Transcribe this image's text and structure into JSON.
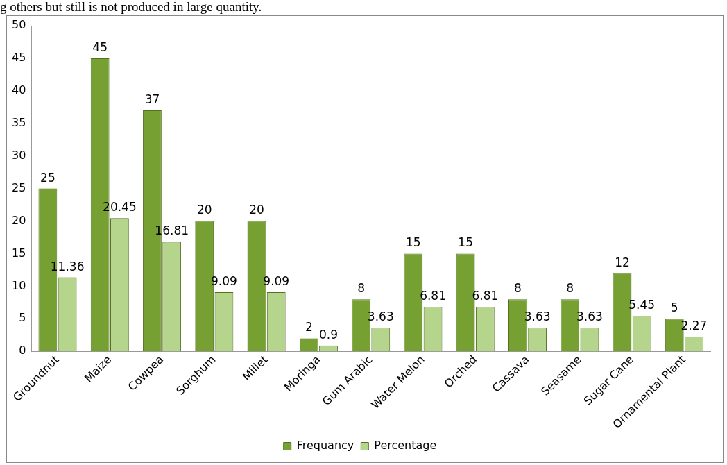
{
  "chart_data": {
    "type": "bar",
    "annotations": [
      "g others but still is not produced in large quantity."
    ],
    "categories": [
      "Groundnut",
      "Maize",
      "Cowpea",
      "Sorghum",
      "Millet",
      "Moringa",
      "Gum Arabic",
      "Water Melon",
      "Orched",
      "Cassava",
      "Seasame",
      "Sugar Cane",
      "Ornamental Plant"
    ],
    "series": [
      {
        "name": "Frequancy",
        "color": "#77a033",
        "values": [
          25,
          45,
          37,
          20,
          20,
          2,
          8,
          15,
          15,
          8,
          8,
          12,
          5
        ]
      },
      {
        "name": "Percentage",
        "color": "#b5d48c",
        "values": [
          11.36,
          20.45,
          16.81,
          9.09,
          9.09,
          0.9,
          3.63,
          6.81,
          6.81,
          3.63,
          3.63,
          5.45,
          2.27
        ]
      }
    ],
    "ylim": [
      0,
      50
    ],
    "yticks": [
      0,
      5,
      10,
      15,
      20,
      25,
      30,
      35,
      40,
      45,
      50
    ],
    "grid": false,
    "legend": "bottom",
    "data_labels": true
  }
}
